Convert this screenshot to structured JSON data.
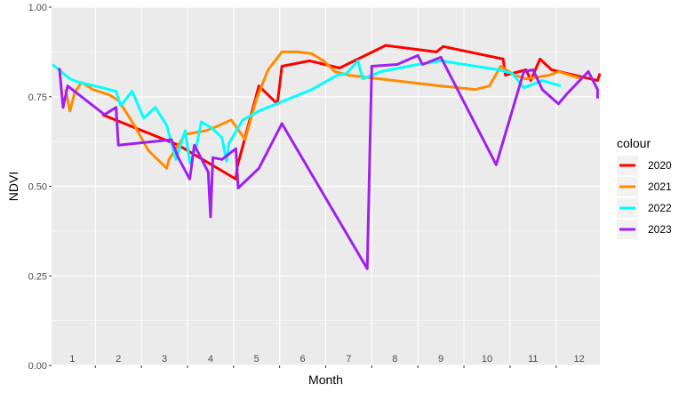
{
  "chart_data": {
    "type": "line",
    "xlabel": "Month",
    "ylabel": "NDVI",
    "xlim": [
      0.55,
      12.45
    ],
    "ylim": [
      0,
      1
    ],
    "y_ticks": [
      0.0,
      0.25,
      0.5,
      0.75,
      1.0
    ],
    "y_tick_labels": [
      "0.00",
      "0.25",
      "0.50",
      "0.75",
      "1.00"
    ],
    "month_labels": [
      "1",
      "2",
      "3",
      "4",
      "5",
      "6",
      "7",
      "8",
      "9",
      "10",
      "11",
      "12"
    ],
    "grid": true,
    "panel_background": "#EBEBEB",
    "legend": {
      "title": "colour",
      "position": "right"
    },
    "series": [
      {
        "name": "2020",
        "color": "#FF0000",
        "points": [
          [
            1.65,
            0.7
          ],
          [
            3.3,
            0.615
          ],
          [
            4.55,
            0.52
          ],
          [
            4.58,
            0.555
          ],
          [
            5.05,
            0.78
          ],
          [
            5.45,
            0.73
          ],
          [
            5.55,
            0.835
          ],
          [
            6.15,
            0.85
          ],
          [
            6.8,
            0.83
          ],
          [
            7.8,
            0.893
          ],
          [
            8.9,
            0.875
          ],
          [
            9.05,
            0.89
          ],
          [
            10.35,
            0.855
          ],
          [
            10.4,
            0.81
          ],
          [
            10.85,
            0.825
          ],
          [
            10.95,
            0.795
          ],
          [
            11.15,
            0.855
          ],
          [
            11.4,
            0.825
          ],
          [
            12.4,
            0.795
          ],
          [
            12.45,
            0.815
          ]
        ]
      },
      {
        "name": "2021",
        "color": "#FF8C00",
        "points": [
          [
            0.85,
            0.77
          ],
          [
            0.95,
            0.71
          ],
          [
            1.05,
            0.76
          ],
          [
            1.2,
            0.79
          ],
          [
            1.45,
            0.77
          ],
          [
            1.8,
            0.755
          ],
          [
            2.0,
            0.74
          ],
          [
            2.15,
            0.71
          ],
          [
            2.35,
            0.67
          ],
          [
            2.65,
            0.6
          ],
          [
            3.05,
            0.55
          ],
          [
            3.1,
            0.575
          ],
          [
            3.45,
            0.645
          ],
          [
            3.9,
            0.655
          ],
          [
            4.1,
            0.665
          ],
          [
            4.45,
            0.685
          ],
          [
            4.75,
            0.63
          ],
          [
            5.0,
            0.745
          ],
          [
            5.25,
            0.825
          ],
          [
            5.55,
            0.875
          ],
          [
            5.9,
            0.875
          ],
          [
            6.2,
            0.87
          ],
          [
            6.45,
            0.85
          ],
          [
            6.7,
            0.82
          ],
          [
            7.0,
            0.81
          ],
          [
            9.0,
            0.78
          ],
          [
            9.75,
            0.77
          ],
          [
            10.05,
            0.78
          ],
          [
            10.3,
            0.835
          ],
          [
            10.6,
            0.81
          ],
          [
            10.85,
            0.8
          ],
          [
            11.35,
            0.81
          ],
          [
            11.55,
            0.82
          ],
          [
            12.05,
            0.8
          ]
        ]
      },
      {
        "name": "2022",
        "color": "#00FFFF",
        "points": [
          [
            0.57,
            0.84
          ],
          [
            0.95,
            0.8
          ],
          [
            1.15,
            0.79
          ],
          [
            1.5,
            0.78
          ],
          [
            1.95,
            0.765
          ],
          [
            2.05,
            0.725
          ],
          [
            2.3,
            0.765
          ],
          [
            2.55,
            0.69
          ],
          [
            2.8,
            0.72
          ],
          [
            3.05,
            0.67
          ],
          [
            3.25,
            0.575
          ],
          [
            3.45,
            0.655
          ],
          [
            3.55,
            0.565
          ],
          [
            3.7,
            0.615
          ],
          [
            3.8,
            0.68
          ],
          [
            4.05,
            0.66
          ],
          [
            4.25,
            0.635
          ],
          [
            4.35,
            0.57
          ],
          [
            4.4,
            0.62
          ],
          [
            4.7,
            0.685
          ],
          [
            5.05,
            0.71
          ],
          [
            6.2,
            0.77
          ],
          [
            6.75,
            0.81
          ],
          [
            6.95,
            0.815
          ],
          [
            7.2,
            0.85
          ],
          [
            7.3,
            0.8
          ],
          [
            7.7,
            0.82
          ],
          [
            8.5,
            0.84
          ],
          [
            9.0,
            0.85
          ],
          [
            10.25,
            0.825
          ],
          [
            10.55,
            0.815
          ],
          [
            10.8,
            0.775
          ],
          [
            11.2,
            0.795
          ],
          [
            11.6,
            0.78
          ]
        ]
      },
      {
        "name": "2023",
        "color": "#A020F0",
        "points": [
          [
            0.72,
            0.83
          ],
          [
            0.8,
            0.72
          ],
          [
            0.9,
            0.78
          ],
          [
            1.0,
            0.77
          ],
          [
            1.7,
            0.7
          ],
          [
            1.95,
            0.72
          ],
          [
            2.0,
            0.615
          ],
          [
            3.15,
            0.63
          ],
          [
            3.3,
            0.58
          ],
          [
            3.55,
            0.52
          ],
          [
            3.65,
            0.615
          ],
          [
            3.95,
            0.54
          ],
          [
            4.0,
            0.415
          ],
          [
            4.05,
            0.58
          ],
          [
            4.25,
            0.575
          ],
          [
            4.55,
            0.605
          ],
          [
            4.6,
            0.495
          ],
          [
            5.05,
            0.55
          ],
          [
            5.55,
            0.675
          ],
          [
            7.4,
            0.27
          ],
          [
            7.5,
            0.835
          ],
          [
            8.05,
            0.84
          ],
          [
            8.5,
            0.865
          ],
          [
            8.6,
            0.84
          ],
          [
            9.0,
            0.86
          ],
          [
            10.2,
            0.56
          ],
          [
            10.8,
            0.82
          ],
          [
            11.0,
            0.825
          ],
          [
            11.2,
            0.77
          ],
          [
            11.55,
            0.73
          ],
          [
            11.75,
            0.76
          ],
          [
            12.2,
            0.82
          ],
          [
            12.4,
            0.77
          ],
          [
            12.4,
            0.745
          ]
        ]
      }
    ]
  }
}
